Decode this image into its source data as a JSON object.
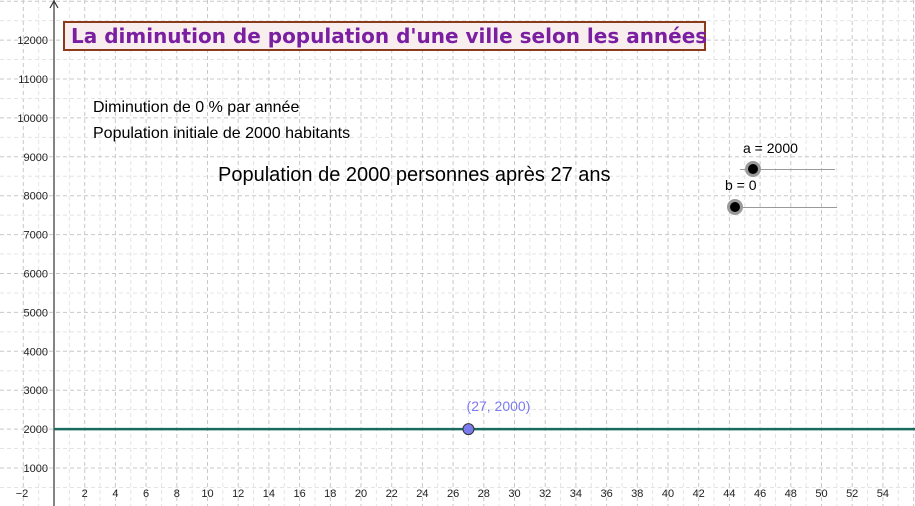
{
  "title": "La diminution de population d'une ville selon les années",
  "info": {
    "line1": "Diminution de 0 % par année",
    "line2": "Population initiale de 2000 habitants",
    "result": "Population de 2000 personnes après 27 ans"
  },
  "sliders": [
    {
      "label": "a = 2000",
      "name": "a",
      "value": 2000
    },
    {
      "label": "b = 0",
      "name": "b",
      "value": 0
    }
  ],
  "chart_data": {
    "type": "line",
    "xlim": [
      -2,
      56
    ],
    "ylim": [
      0,
      12000
    ],
    "x_ticks": [
      2,
      4,
      6,
      8,
      10,
      12,
      14,
      16,
      18,
      20,
      22,
      24,
      26,
      28,
      30,
      32,
      34,
      36,
      38,
      40,
      42,
      44,
      46,
      48,
      50,
      52,
      54
    ],
    "x_tick_labels": [
      "2",
      "4",
      "6",
      "8",
      "10",
      "12",
      "14",
      "16",
      "18",
      "20",
      "22",
      "24",
      "26",
      "28",
      "30",
      "32",
      "34",
      "36",
      "38",
      "40",
      "42",
      "44",
      "46",
      "48",
      "50",
      "52",
      "54"
    ],
    "x_origin_label": "−2",
    "y_ticks": [
      1000,
      2000,
      3000,
      4000,
      5000,
      6000,
      7000,
      8000,
      9000,
      10000,
      11000,
      12000
    ],
    "y_tick_labels": [
      "1000",
      "2000",
      "3000",
      "4000",
      "5000",
      "6000",
      "7000",
      "8000",
      "9000",
      "10000",
      "11000",
      "12000"
    ],
    "grid": true,
    "series": [
      {
        "values": [
          2000,
          2000
        ],
        "x": [
          -2,
          56
        ],
        "color": "#1a6b5f"
      }
    ],
    "point": {
      "x": 27,
      "y": 2000,
      "label": "(27, 2000)",
      "color": "#7b7bf0"
    }
  }
}
